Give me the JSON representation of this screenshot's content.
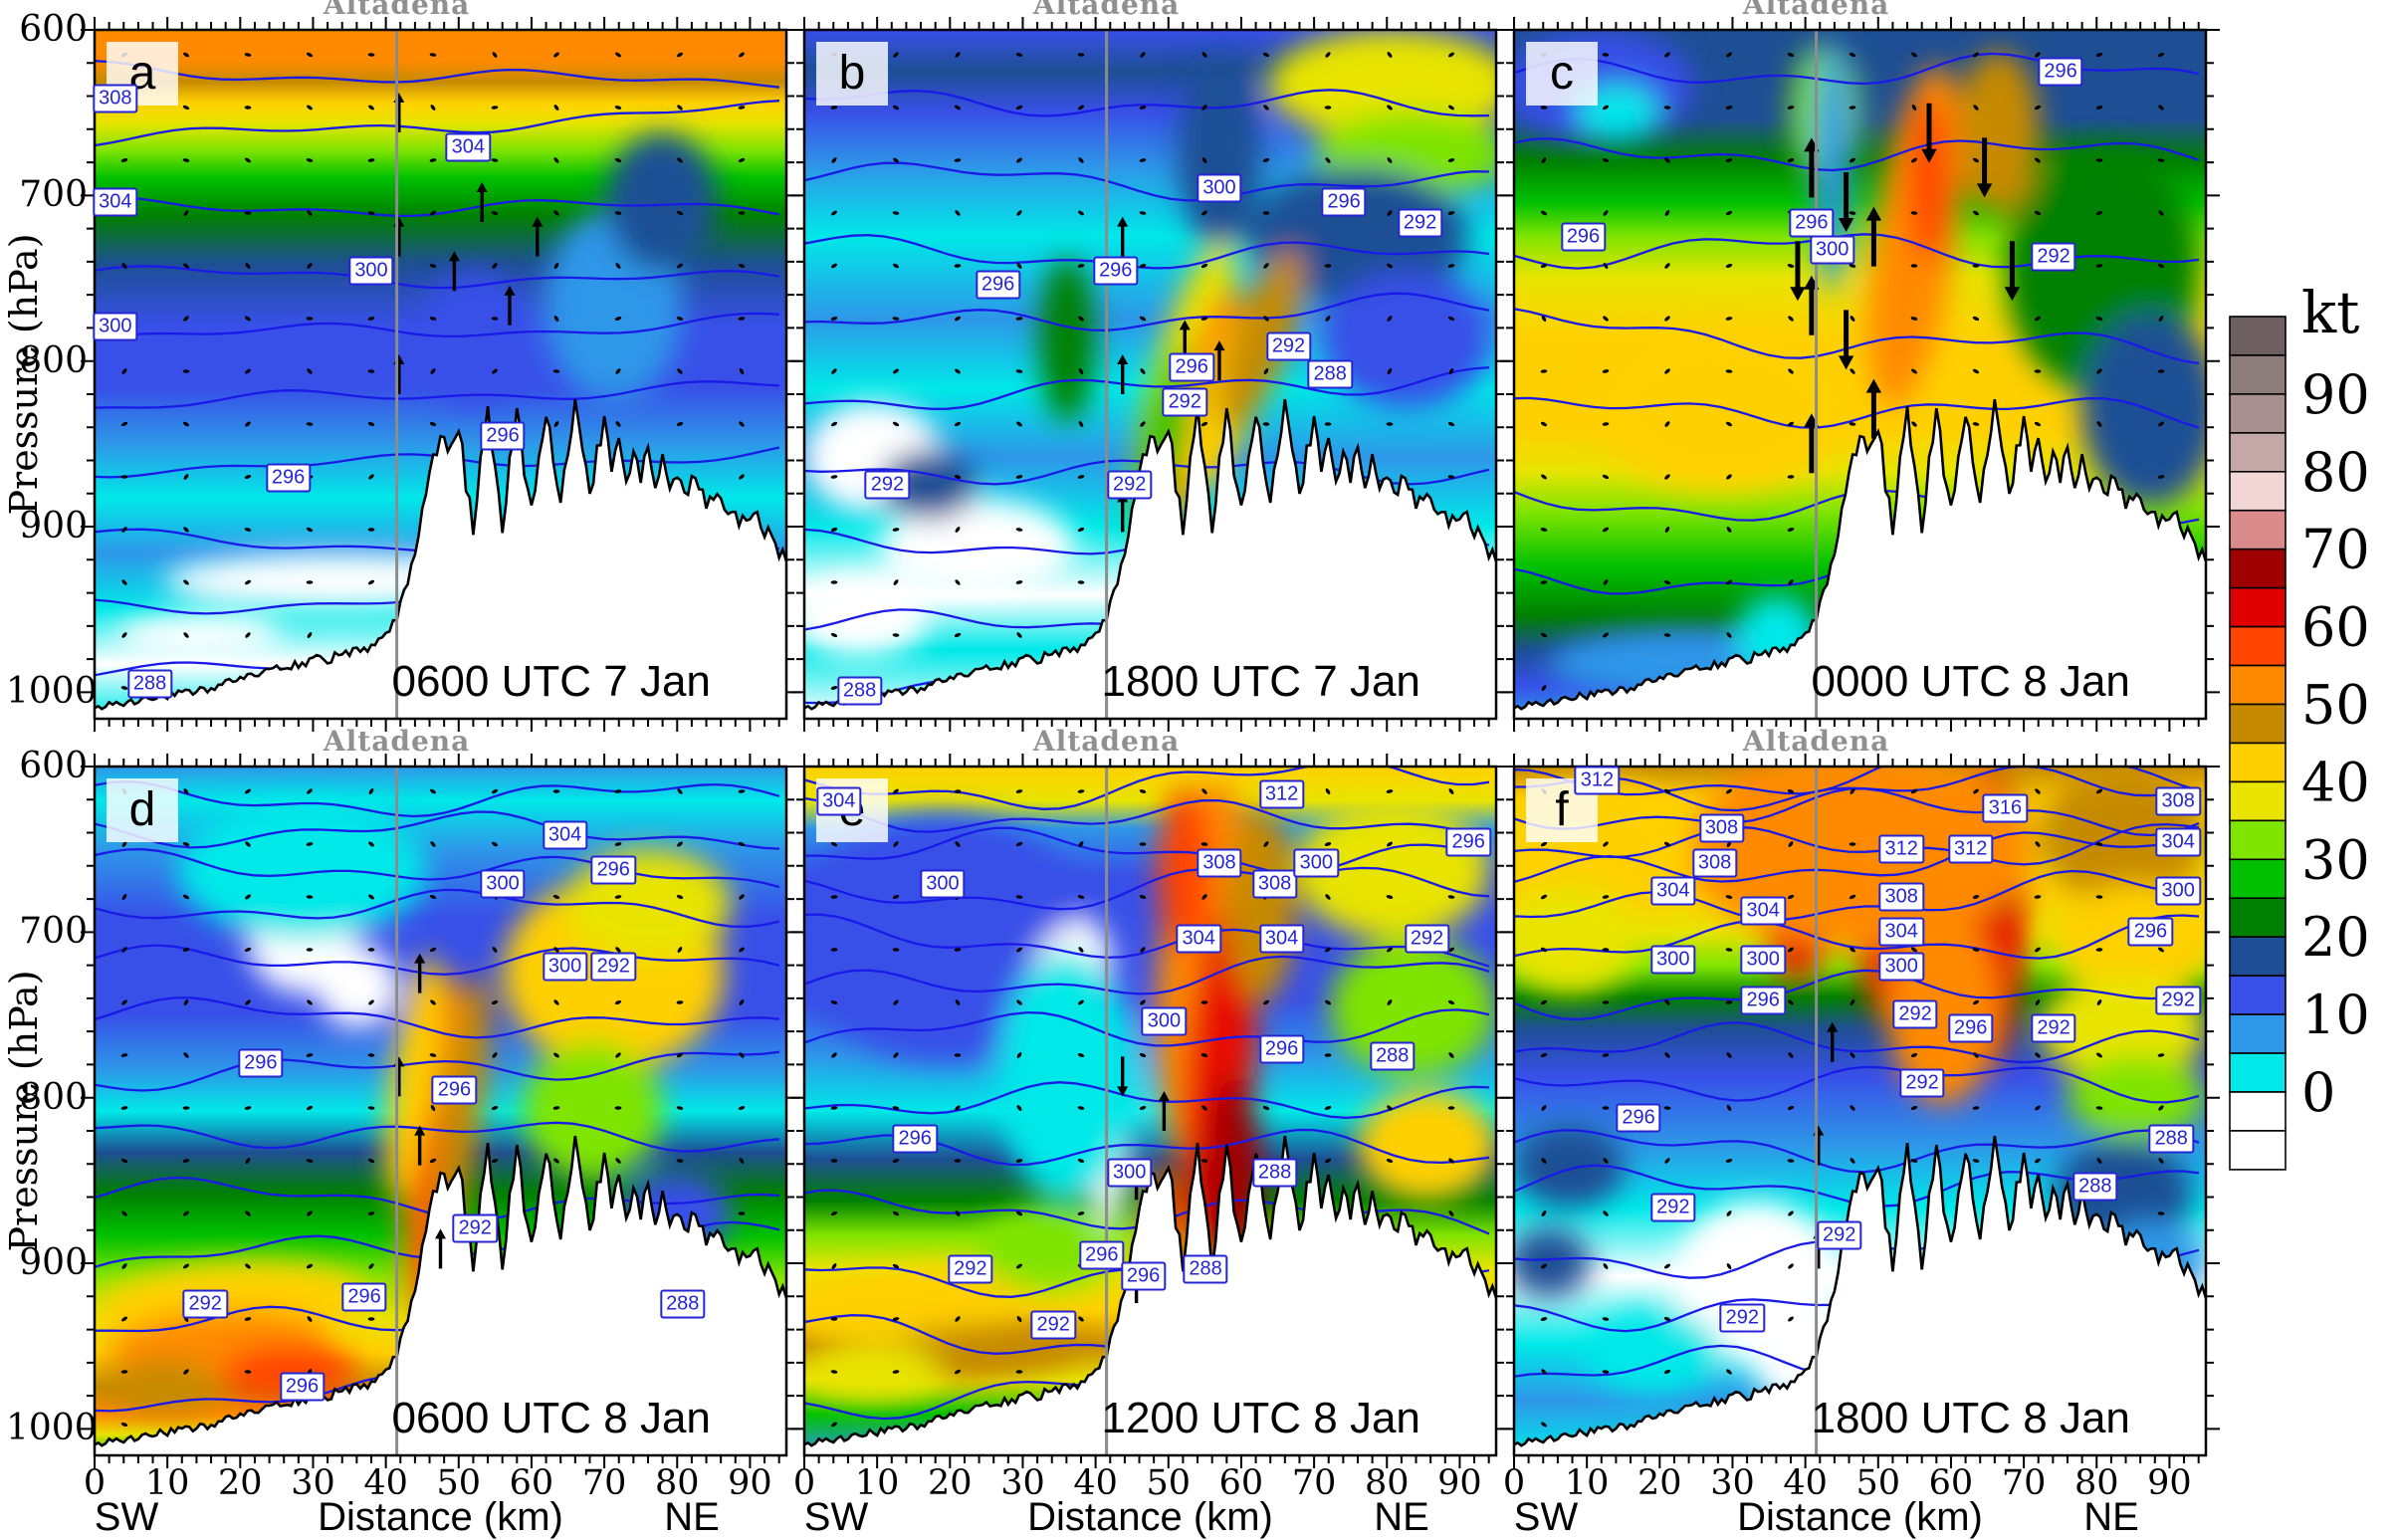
{
  "chart_data": {
    "type": "heatmap",
    "subtype": "vertical-cross-section-grid-filled-contours",
    "shaded_variable": "wind speed",
    "units": "kt",
    "grid": {
      "rows": 2,
      "cols": 3
    },
    "x_axis": {
      "label": "Distance (km)",
      "left_end_label": "SW",
      "right_end_label": "NE",
      "ticks": [
        0,
        10,
        20,
        30,
        40,
        50,
        60,
        70,
        80,
        90
      ],
      "minor_step_km": 2,
      "range_km": [
        0,
        95
      ]
    },
    "y_axis": {
      "label": "Pressure (hPa)",
      "ticks": [
        600,
        700,
        800,
        900,
        1000
      ],
      "range_hPa": [
        600,
        1016
      ],
      "inverted": true
    },
    "colorbar": {
      "title": "kt",
      "tick_values": [
        90,
        80,
        70,
        60,
        50,
        40,
        30,
        20,
        10,
        0
      ],
      "cell_step_kt": 5,
      "colors_top_to_bottom": [
        "#6E6060",
        "#8C7C7C",
        "#A89090",
        "#C4A8A8",
        "#F2D6D6",
        "#D98A8A",
        "#A00000",
        "#E00000",
        "#FF4500",
        "#FF8A00",
        "#C68A00",
        "#FFD000",
        "#E8E400",
        "#7FE400",
        "#00C000",
        "#008000",
        "#1E4F94",
        "#3850E8",
        "#2E97E8",
        "#00E8E8",
        "#FFFFFF",
        "#FFFFFF"
      ]
    },
    "location_marker": {
      "name": "Altadena",
      "x_km": 41.5
    },
    "line_contours": {
      "variable": "potential temperature",
      "units": "K",
      "labeled_values_visible": [
        288,
        292,
        296,
        300,
        304,
        308,
        312,
        316
      ],
      "color": "#1A1AE8"
    },
    "panels": [
      {
        "id": "a",
        "row": 0,
        "col": 0,
        "time_label": "0600 UTC 7 Jan",
        "contour_labels": [
          {
            "v": 308,
            "x": 3,
            "y": 10
          },
          {
            "v": 304,
            "x": 3,
            "y": 25
          },
          {
            "v": 304,
            "x": 54,
            "y": 17
          },
          {
            "v": 300,
            "x": 40,
            "y": 35
          },
          {
            "v": 300,
            "x": 3,
            "y": 43
          },
          {
            "v": 296,
            "x": 28,
            "y": 65
          },
          {
            "v": 296,
            "x": 59,
            "y": 59
          },
          {
            "v": 288,
            "x": 8,
            "y": 95
          }
        ]
      },
      {
        "id": "b",
        "row": 0,
        "col": 1,
        "time_label": "1800 UTC 7 Jan",
        "contour_labels": [
          {
            "v": 300,
            "x": 60,
            "y": 23
          },
          {
            "v": 296,
            "x": 78,
            "y": 25
          },
          {
            "v": 292,
            "x": 89,
            "y": 28
          },
          {
            "v": 296,
            "x": 45,
            "y": 35
          },
          {
            "v": 296,
            "x": 28,
            "y": 37
          },
          {
            "v": 292,
            "x": 70,
            "y": 46
          },
          {
            "v": 288,
            "x": 76,
            "y": 50
          },
          {
            "v": 296,
            "x": 56,
            "y": 49
          },
          {
            "v": 292,
            "x": 55,
            "y": 54
          },
          {
            "v": 292,
            "x": 12,
            "y": 66
          },
          {
            "v": 292,
            "x": 47,
            "y": 66
          },
          {
            "v": 288,
            "x": 8,
            "y": 96
          }
        ]
      },
      {
        "id": "c",
        "row": 0,
        "col": 2,
        "time_label": "0000 UTC 8 Jan",
        "contour_labels": [
          {
            "v": 296,
            "x": 79,
            "y": 6
          },
          {
            "v": 296,
            "x": 43,
            "y": 28
          },
          {
            "v": 300,
            "x": 46,
            "y": 32
          },
          {
            "v": 296,
            "x": 10,
            "y": 30
          },
          {
            "v": 292,
            "x": 78,
            "y": 33
          }
        ]
      },
      {
        "id": "d",
        "row": 1,
        "col": 0,
        "time_label": "0600 UTC 8 Jan",
        "contour_labels": [
          {
            "v": 304,
            "x": 68,
            "y": 10
          },
          {
            "v": 300,
            "x": 59,
            "y": 17
          },
          {
            "v": 296,
            "x": 75,
            "y": 15
          },
          {
            "v": 300,
            "x": 68,
            "y": 29
          },
          {
            "v": 292,
            "x": 75,
            "y": 29
          },
          {
            "v": 296,
            "x": 24,
            "y": 43
          },
          {
            "v": 296,
            "x": 52,
            "y": 47
          },
          {
            "v": 292,
            "x": 55,
            "y": 67
          },
          {
            "v": 292,
            "x": 16,
            "y": 78
          },
          {
            "v": 296,
            "x": 39,
            "y": 77
          },
          {
            "v": 288,
            "x": 85,
            "y": 78
          },
          {
            "v": 296,
            "x": 30,
            "y": 90
          }
        ]
      },
      {
        "id": "e",
        "row": 1,
        "col": 1,
        "time_label": "1200 UTC 8 Jan",
        "contour_labels": [
          {
            "v": 304,
            "x": 5,
            "y": 5
          },
          {
            "v": 312,
            "x": 69,
            "y": 4
          },
          {
            "v": 300,
            "x": 20,
            "y": 17
          },
          {
            "v": 308,
            "x": 60,
            "y": 14
          },
          {
            "v": 308,
            "x": 68,
            "y": 17
          },
          {
            "v": 300,
            "x": 74,
            "y": 14
          },
          {
            "v": 296,
            "x": 96,
            "y": 11
          },
          {
            "v": 304,
            "x": 57,
            "y": 25
          },
          {
            "v": 304,
            "x": 69,
            "y": 25
          },
          {
            "v": 292,
            "x": 90,
            "y": 25
          },
          {
            "v": 300,
            "x": 52,
            "y": 37
          },
          {
            "v": 296,
            "x": 69,
            "y": 41
          },
          {
            "v": 288,
            "x": 85,
            "y": 42
          },
          {
            "v": 296,
            "x": 16,
            "y": 54
          },
          {
            "v": 300,
            "x": 47,
            "y": 59
          },
          {
            "v": 288,
            "x": 68,
            "y": 59
          },
          {
            "v": 292,
            "x": 24,
            "y": 73
          },
          {
            "v": 296,
            "x": 43,
            "y": 71
          },
          {
            "v": 296,
            "x": 49,
            "y": 74
          },
          {
            "v": 288,
            "x": 58,
            "y": 73
          },
          {
            "v": 292,
            "x": 36,
            "y": 81
          }
        ]
      },
      {
        "id": "f",
        "row": 1,
        "col": 2,
        "time_label": "1800 UTC 8 Jan",
        "contour_labels": [
          {
            "v": 312,
            "x": 12,
            "y": 2
          },
          {
            "v": 316,
            "x": 71,
            "y": 6
          },
          {
            "v": 308,
            "x": 30,
            "y": 9
          },
          {
            "v": 312,
            "x": 56,
            "y": 12
          },
          {
            "v": 312,
            "x": 66,
            "y": 12
          },
          {
            "v": 308,
            "x": 96,
            "y": 5
          },
          {
            "v": 308,
            "x": 29,
            "y": 14
          },
          {
            "v": 304,
            "x": 23,
            "y": 18
          },
          {
            "v": 304,
            "x": 36,
            "y": 21
          },
          {
            "v": 308,
            "x": 56,
            "y": 19
          },
          {
            "v": 304,
            "x": 96,
            "y": 11
          },
          {
            "v": 300,
            "x": 23,
            "y": 28
          },
          {
            "v": 300,
            "x": 36,
            "y": 28
          },
          {
            "v": 304,
            "x": 56,
            "y": 24
          },
          {
            "v": 300,
            "x": 96,
            "y": 18
          },
          {
            "v": 300,
            "x": 56,
            "y": 29
          },
          {
            "v": 296,
            "x": 36,
            "y": 34
          },
          {
            "v": 292,
            "x": 58,
            "y": 36
          },
          {
            "v": 296,
            "x": 66,
            "y": 38
          },
          {
            "v": 292,
            "x": 78,
            "y": 38
          },
          {
            "v": 296,
            "x": 92,
            "y": 24
          },
          {
            "v": 292,
            "x": 96,
            "y": 34
          },
          {
            "v": 292,
            "x": 59,
            "y": 46
          },
          {
            "v": 296,
            "x": 18,
            "y": 51
          },
          {
            "v": 288,
            "x": 95,
            "y": 54
          },
          {
            "v": 288,
            "x": 84,
            "y": 61
          },
          {
            "v": 292,
            "x": 23,
            "y": 64
          },
          {
            "v": 292,
            "x": 47,
            "y": 68
          },
          {
            "v": 292,
            "x": 33,
            "y": 80
          }
        ]
      }
    ]
  }
}
